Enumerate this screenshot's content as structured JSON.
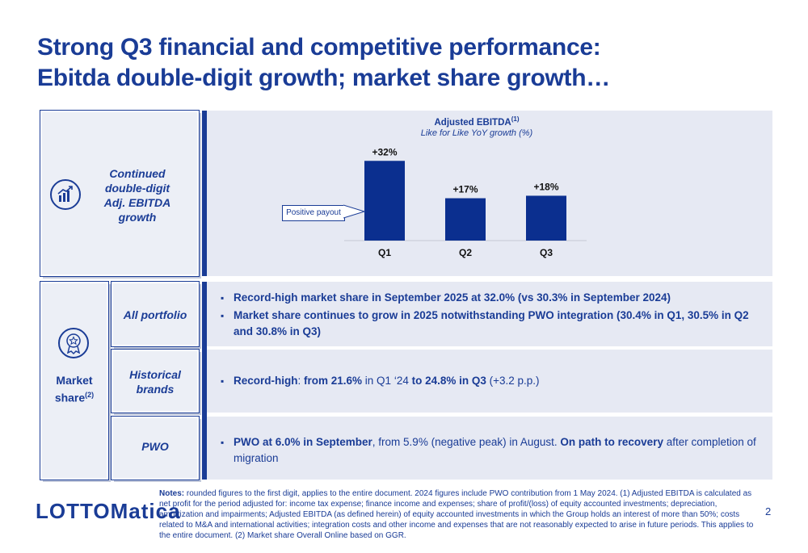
{
  "title": {
    "line1": "Strong Q3 financial and competitive performance:",
    "line2": "Ebitda double-digit growth; market share growth…"
  },
  "ebitda_section": {
    "label_line1": "Continued",
    "label_line2": "double-digit",
    "label_line3": "Adj. EBITDA",
    "label_line4": "growth",
    "icon": "growth-chart-icon"
  },
  "chart_data": {
    "type": "bar",
    "title": "Adjusted EBITDA",
    "title_sup": "(1)",
    "subtitle": "Like for Like YoY growth (%)",
    "categories": [
      "Q1",
      "Q2",
      "Q3"
    ],
    "values": [
      32,
      17,
      18
    ],
    "data_labels": [
      "+32%",
      "+17%",
      "+18%"
    ],
    "ylim": [
      0,
      35
    ],
    "annotation": "Positive payout",
    "bar_color": "#0b2f8f"
  },
  "market_share": {
    "label": "Market",
    "label2": "share",
    "label_sup": "(2)",
    "icon": "award-badge-icon",
    "rows": [
      {
        "label": "All portfolio"
      },
      {
        "label_line1": "Historical",
        "label_line2": "brands"
      },
      {
        "label": "PWO"
      }
    ],
    "all_portfolio": {
      "b1": "Record-high market share in September 2025 at 32.0% (vs 30.3% in September 2024)",
      "b2": "Market share continues to grow in 2025 notwithstanding PWO integration (30.4% in Q1, 30.5% in Q2 and 30.8% in Q3)"
    },
    "historical": {
      "p1": "Record-high",
      "p2": ": ",
      "p3": "from 21.6%",
      "p4": " in Q1 ‘24 ",
      "p5": "to 24.8% in Q3",
      "p6": " (+3.2 p.p.)"
    },
    "pwo": {
      "p1": "PWO at 6.0% in September",
      "p2": ", from 5.9% (negative peak) in August. ",
      "p3": "On path to recovery",
      "p4": " after completion of migration"
    }
  },
  "notes": {
    "label": "Notes:",
    "text": " rounded figures to the first digit, applies to the entire document. 2024 figures include PWO contribution from 1 May 2024. (1) Adjusted EBITDA is calculated as net profit for the period adjusted for: income tax expense; finance income and expenses; share of profit/(loss) of equity accounted investments; depreciation, amortization and impairments; Adjusted EBITDA (as defined herein) of equity accounted investments in which the Group holds an interest of more than 50%; costs related to M&A and international activities; integration costs and other income and expenses that are not reasonably expected to arise in future periods. This applies to the entire document. (2) Market share Overall Online based on GGR."
  },
  "logo": "LOTTOMatica",
  "page_number": "2",
  "colors": {
    "brand": "#1a3c96",
    "panel": "#e6e9f3"
  }
}
